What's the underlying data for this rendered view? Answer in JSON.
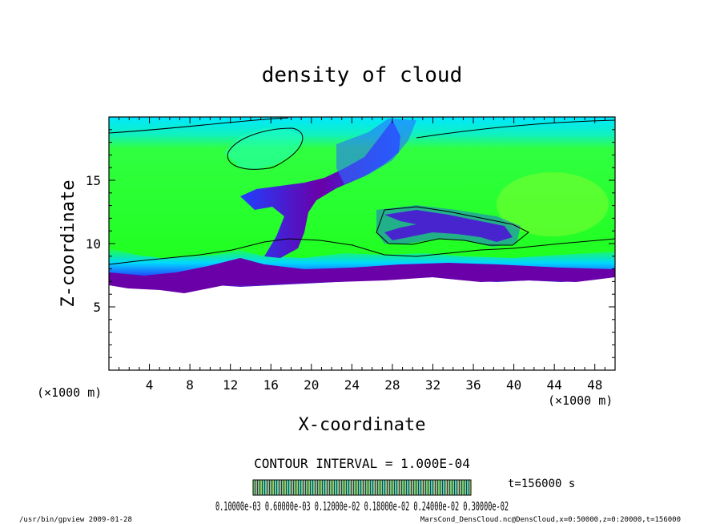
{
  "chart_data": {
    "type": "heatmap",
    "title": "density of cloud",
    "xlabel": "X-coordinate",
    "ylabel": "Z-coordinate",
    "x_unit": "(×1000 m)",
    "x_unit_right": "(×1000 m)",
    "xlim": [
      0,
      50
    ],
    "ylim": [
      0,
      20
    ],
    "x_ticks": [
      4,
      8,
      12,
      16,
      20,
      24,
      28,
      32,
      36,
      40,
      44,
      48
    ],
    "y_ticks": [
      5,
      10,
      15
    ],
    "contour_interval_text": "CONTOUR INTERVAL = 1.000E-04",
    "time_label": "t=156000 s",
    "colorbar_labels_text": "0.10000e-03 0.60000e-03 0.12000e-02 0.18000e-02 0.24000e-02 0.30000e-02",
    "cloud_base_km": 7.5,
    "dense_layer_top_km": 8.2,
    "colors": {
      "background_field": "#00ff20",
      "upper_field": "#00e8ff",
      "mid_field": "#2060ff",
      "dense": "#6a00a8",
      "empty": "#ffffff"
    }
  },
  "footer": {
    "left": "/usr/bin/gpview   2009-01-28",
    "right": "MarsCond_DensCloud.nc@DensCloud,x=0:50000,z=0:20000,t=156000"
  }
}
